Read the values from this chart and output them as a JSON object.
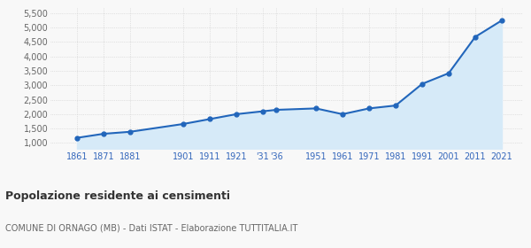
{
  "years": [
    1861,
    1871,
    1881,
    1901,
    1911,
    1921,
    1931,
    1936,
    1951,
    1961,
    1971,
    1981,
    1991,
    2001,
    2011,
    2021
  ],
  "population": [
    1180,
    1320,
    1390,
    1660,
    1830,
    2000,
    2100,
    2150,
    2200,
    2000,
    2200,
    2300,
    3050,
    3420,
    4680,
    5250
  ],
  "line_color": "#2266bb",
  "fill_color": "#d6eaf8",
  "marker_color": "#2266bb",
  "bg_color": "#f8f8f8",
  "grid_color": "#cccccc",
  "x_tick_color": "#3366bb",
  "y_tick_color": "#666666",
  "title": "Popolazione residente ai censimenti",
  "subtitle": "COMUNE DI ORNAGO (MB) - Dati ISTAT - Elaborazione TUTTITALIA.IT",
  "ylim": [
    800,
    5700
  ],
  "yticks": [
    1000,
    1500,
    2000,
    2500,
    3000,
    3500,
    4000,
    4500,
    5000,
    5500
  ],
  "ytick_labels": [
    "1,000",
    "1,500",
    "2,000",
    "2,500",
    "3,000",
    "3,500",
    "4,000",
    "4,500",
    "5,000",
    "5,500"
  ],
  "x_positions": [
    1861,
    1871,
    1881,
    1901,
    1911,
    1921,
    1931,
    1936,
    1951,
    1961,
    1971,
    1981,
    1991,
    2001,
    2011,
    2021
  ],
  "x_labels": [
    "1861",
    "1871",
    "1881",
    "1901",
    "1911",
    "1921",
    "'31",
    "'36",
    "1951",
    "1961",
    "1971",
    "1981",
    "1991",
    "2001",
    "2011",
    "2021"
  ],
  "xlim": [
    1851,
    2029
  ]
}
